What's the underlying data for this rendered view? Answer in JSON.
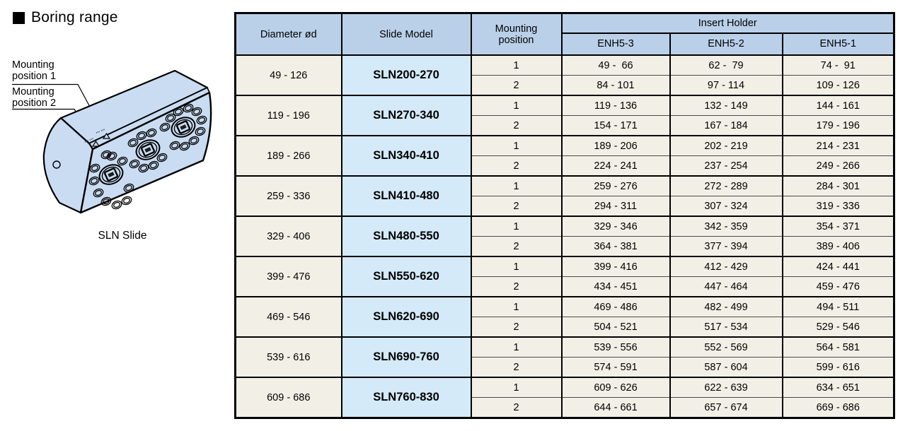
{
  "page": {
    "title": "Boring range"
  },
  "figure": {
    "label_mounting_1": "Mounting position 1",
    "label_mounting_2": "Mounting position 2",
    "caption": "SLN Slide",
    "body_color": "#c9dcf2"
  },
  "colors": {
    "header_blue": "#bad0e9",
    "model_blue": "#d5eaf8",
    "cell_cream": "#f2f0e6"
  },
  "table": {
    "headers": {
      "diameter": "Diameter ød",
      "slide_model": "Slide Model",
      "mounting_position": "Mounting position",
      "insert_holder": "Insert Holder",
      "holders": [
        "ENH5-3",
        "ENH5-2",
        "ENH5-1"
      ]
    },
    "groups": [
      {
        "diameter": "49 - 126",
        "model": "SLN200-270",
        "rows": [
          {
            "position": "1",
            "values": [
              "49 -  66",
              "62 -  79",
              "74 -  91"
            ]
          },
          {
            "position": "2",
            "values": [
              "84 - 101",
              "97 - 114",
              "109 - 126"
            ]
          }
        ]
      },
      {
        "diameter": "119 - 196",
        "model": "SLN270-340",
        "rows": [
          {
            "position": "1",
            "values": [
              "119 - 136",
              "132 - 149",
              "144 - 161"
            ]
          },
          {
            "position": "2",
            "values": [
              "154 - 171",
              "167 - 184",
              "179 - 196"
            ]
          }
        ]
      },
      {
        "diameter": "189 - 266",
        "model": "SLN340-410",
        "rows": [
          {
            "position": "1",
            "values": [
              "189 - 206",
              "202 - 219",
              "214 - 231"
            ]
          },
          {
            "position": "2",
            "values": [
              "224 - 241",
              "237 - 254",
              "249 - 266"
            ]
          }
        ]
      },
      {
        "diameter": "259 - 336",
        "model": "SLN410-480",
        "rows": [
          {
            "position": "1",
            "values": [
              "259 - 276",
              "272 - 289",
              "284 - 301"
            ]
          },
          {
            "position": "2",
            "values": [
              "294 - 311",
              "307 - 324",
              "319 - 336"
            ]
          }
        ]
      },
      {
        "diameter": "329 - 406",
        "model": "SLN480-550",
        "rows": [
          {
            "position": "1",
            "values": [
              "329 - 346",
              "342 - 359",
              "354 - 371"
            ]
          },
          {
            "position": "2",
            "values": [
              "364 - 381",
              "377 - 394",
              "389 - 406"
            ]
          }
        ]
      },
      {
        "diameter": "399 - 476",
        "model": "SLN550-620",
        "rows": [
          {
            "position": "1",
            "values": [
              "399 - 416",
              "412 - 429",
              "424 - 441"
            ]
          },
          {
            "position": "2",
            "values": [
              "434 - 451",
              "447 - 464",
              "459 - 476"
            ]
          }
        ]
      },
      {
        "diameter": "469 - 546",
        "model": "SLN620-690",
        "rows": [
          {
            "position": "1",
            "values": [
              "469 - 486",
              "482 - 499",
              "494 - 511"
            ]
          },
          {
            "position": "2",
            "values": [
              "504 - 521",
              "517 - 534",
              "529 - 546"
            ]
          }
        ]
      },
      {
        "diameter": "539 - 616",
        "model": "SLN690-760",
        "rows": [
          {
            "position": "1",
            "values": [
              "539 - 556",
              "552 - 569",
              "564 - 581"
            ]
          },
          {
            "position": "2",
            "values": [
              "574 - 591",
              "587 - 604",
              "599 - 616"
            ]
          }
        ]
      },
      {
        "diameter": "609 - 686",
        "model": "SLN760-830",
        "rows": [
          {
            "position": "1",
            "values": [
              "609 - 626",
              "622 - 639",
              "634 - 651"
            ]
          },
          {
            "position": "2",
            "values": [
              "644 - 661",
              "657 - 674",
              "669 - 686"
            ]
          }
        ]
      }
    ]
  }
}
